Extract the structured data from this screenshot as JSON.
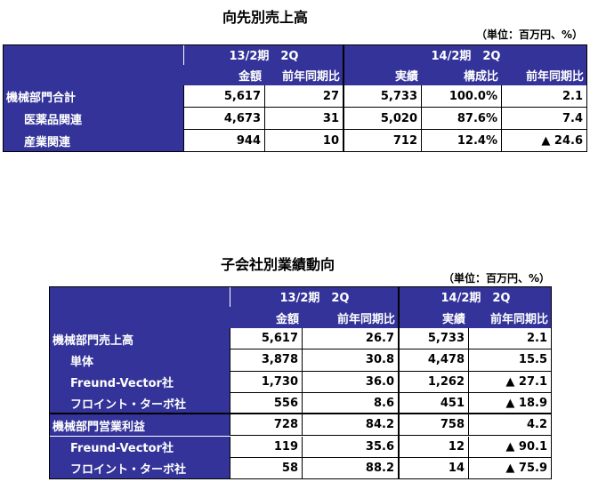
{
  "tables": [
    {
      "title": "向先別売上高",
      "unit": "（単位：百万円、%）",
      "groups": [
        "13/2期　2Q",
        "14/2期　2Q"
      ],
      "columns": [
        "金額",
        "前年同期比",
        "実績",
        "構成比",
        "前年同期比"
      ],
      "rows": [
        [
          "機械部門合計",
          "5,617",
          "27",
          "5,733",
          "100.0%",
          "2.1"
        ],
        [
          "医薬品関連",
          "4,673",
          "31",
          "5,020",
          "87.6%",
          "7.4"
        ],
        [
          "産業関連",
          "944",
          "10",
          "712",
          "12.4%",
          "▲ 24.6"
        ]
      ]
    },
    {
      "title": "子会社別業績動向",
      "unit": "（単位：百万円、%）",
      "groups": [
        "13/2期　2Q",
        "14/2期　2Q"
      ],
      "columns": [
        "金額",
        "前年同期比",
        "実績",
        "前年同期比"
      ],
      "rows": [
        [
          "機械部門売上高",
          "5,617",
          "26.7",
          "5,733",
          "2.1"
        ],
        [
          "単体",
          "3,878",
          "30.8",
          "4,478",
          "15.5"
        ],
        [
          "Freund-Vector社",
          "1,730",
          "36.0",
          "1,262",
          "▲ 27.1"
        ],
        [
          "フロイント・ターボ社",
          "556",
          "8.6",
          "451",
          "▲ 18.9"
        ],
        [
          "機械部門営業利益",
          "728",
          "84.2",
          "758",
          "4.2"
        ],
        [
          "Freund-Vector社",
          "119",
          "35.6",
          "12",
          "▲ 90.1"
        ],
        [
          "フロイント・ターボ社",
          "58",
          "88.2",
          "14",
          "▲ 75.9"
        ]
      ]
    }
  ]
}
